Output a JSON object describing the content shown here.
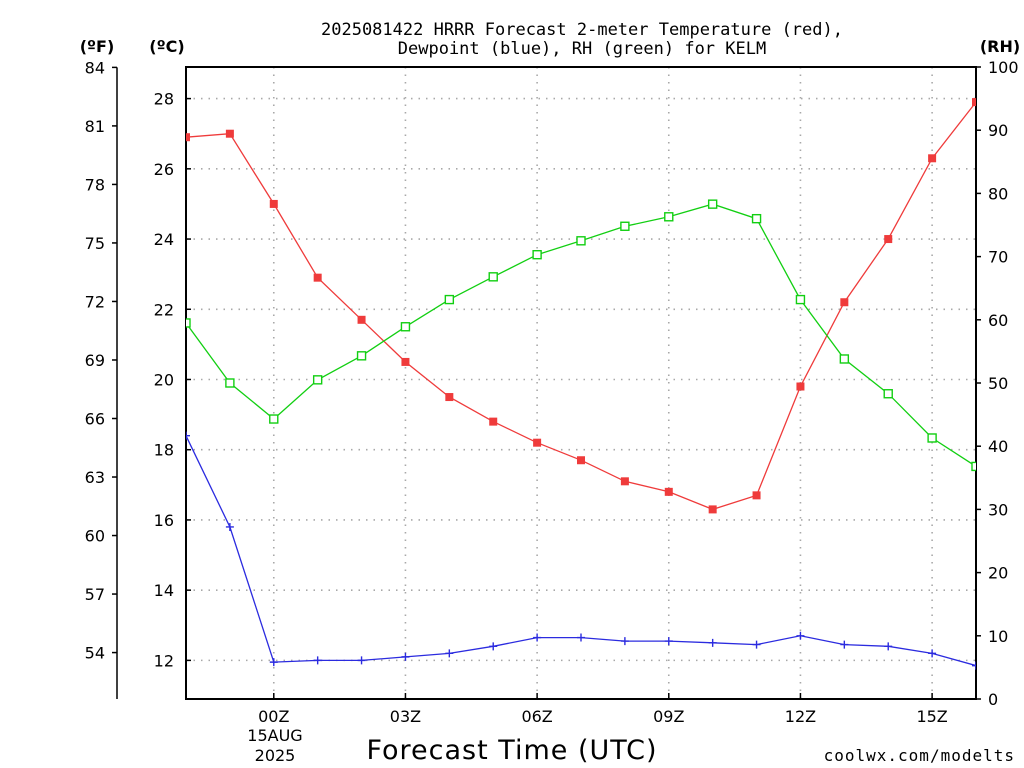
{
  "title_line1": "2025081422 HRRR Forecast 2-meter Temperature (red),",
  "title_line2": "Dewpoint (blue), RH (green) for KELM",
  "units": {
    "f": "(ºF)",
    "c": "(ºC)",
    "rh": "(RH)"
  },
  "xlabel": "Forecast Time (UTC)",
  "date_label": {
    "day": "15AUG",
    "year": "2025"
  },
  "credit": "coolwx.com/modelts",
  "colors": {
    "temperature": "#ef3b3b",
    "dewpoint": "#2b2bdf",
    "rh": "#12cf12",
    "frame": "#000000",
    "credit": "#e0201f"
  },
  "chart_data": {
    "type": "line",
    "title": "2025081422 HRRR Forecast 2-meter Temperature (red), Dewpoint (blue), RH (green) for KELM",
    "xlabel": "Forecast Time (UTC)",
    "x_hours": [
      -2,
      -1,
      0,
      1,
      2,
      3,
      4,
      5,
      6,
      7,
      8,
      9,
      10,
      11,
      12,
      13,
      14,
      15,
      16
    ],
    "x_ticks": [
      {
        "hour": 0,
        "label": "00Z"
      },
      {
        "hour": 3,
        "label": "03Z"
      },
      {
        "hour": 6,
        "label": "06Z"
      },
      {
        "hour": 9,
        "label": "09Z"
      },
      {
        "hour": 12,
        "label": "12Z"
      },
      {
        "hour": 15,
        "label": "15Z"
      }
    ],
    "xlim": [
      -2,
      16
    ],
    "ylim_c": [
      10.9,
      28.9
    ],
    "yticks_c": [
      12,
      14,
      16,
      18,
      20,
      22,
      24,
      26,
      28
    ],
    "yticks_f": [
      54,
      57,
      60,
      63,
      66,
      69,
      72,
      75,
      78,
      81,
      84
    ],
    "ylim_rh": [
      0,
      100
    ],
    "yticks_rh": [
      0,
      10,
      20,
      30,
      40,
      50,
      60,
      70,
      80,
      90,
      100
    ],
    "grid": true,
    "series": [
      {
        "key": "temperature",
        "axis": "celsius",
        "marker": "filled-square",
        "values": [
          26.9,
          27.0,
          25.0,
          22.9,
          21.7,
          20.5,
          19.5,
          18.8,
          18.2,
          17.7,
          17.1,
          16.8,
          16.3,
          16.7,
          19.8,
          22.2,
          24.0,
          26.3,
          27.9
        ]
      },
      {
        "key": "dewpoint",
        "axis": "celsius",
        "marker": "plus",
        "values": [
          18.4,
          15.8,
          11.95,
          12.0,
          12.0,
          12.1,
          12.2,
          12.4,
          12.65,
          12.65,
          12.55,
          12.55,
          12.5,
          12.45,
          12.7,
          12.45,
          12.4,
          12.2,
          11.85
        ]
      },
      {
        "key": "rh",
        "axis": "rh",
        "marker": "open-square",
        "values": [
          59.5,
          50.0,
          44.3,
          50.5,
          54.3,
          58.9,
          63.2,
          66.8,
          70.3,
          72.5,
          74.8,
          76.3,
          78.3,
          76.0,
          63.2,
          53.8,
          48.3,
          41.3,
          36.8
        ]
      }
    ]
  }
}
